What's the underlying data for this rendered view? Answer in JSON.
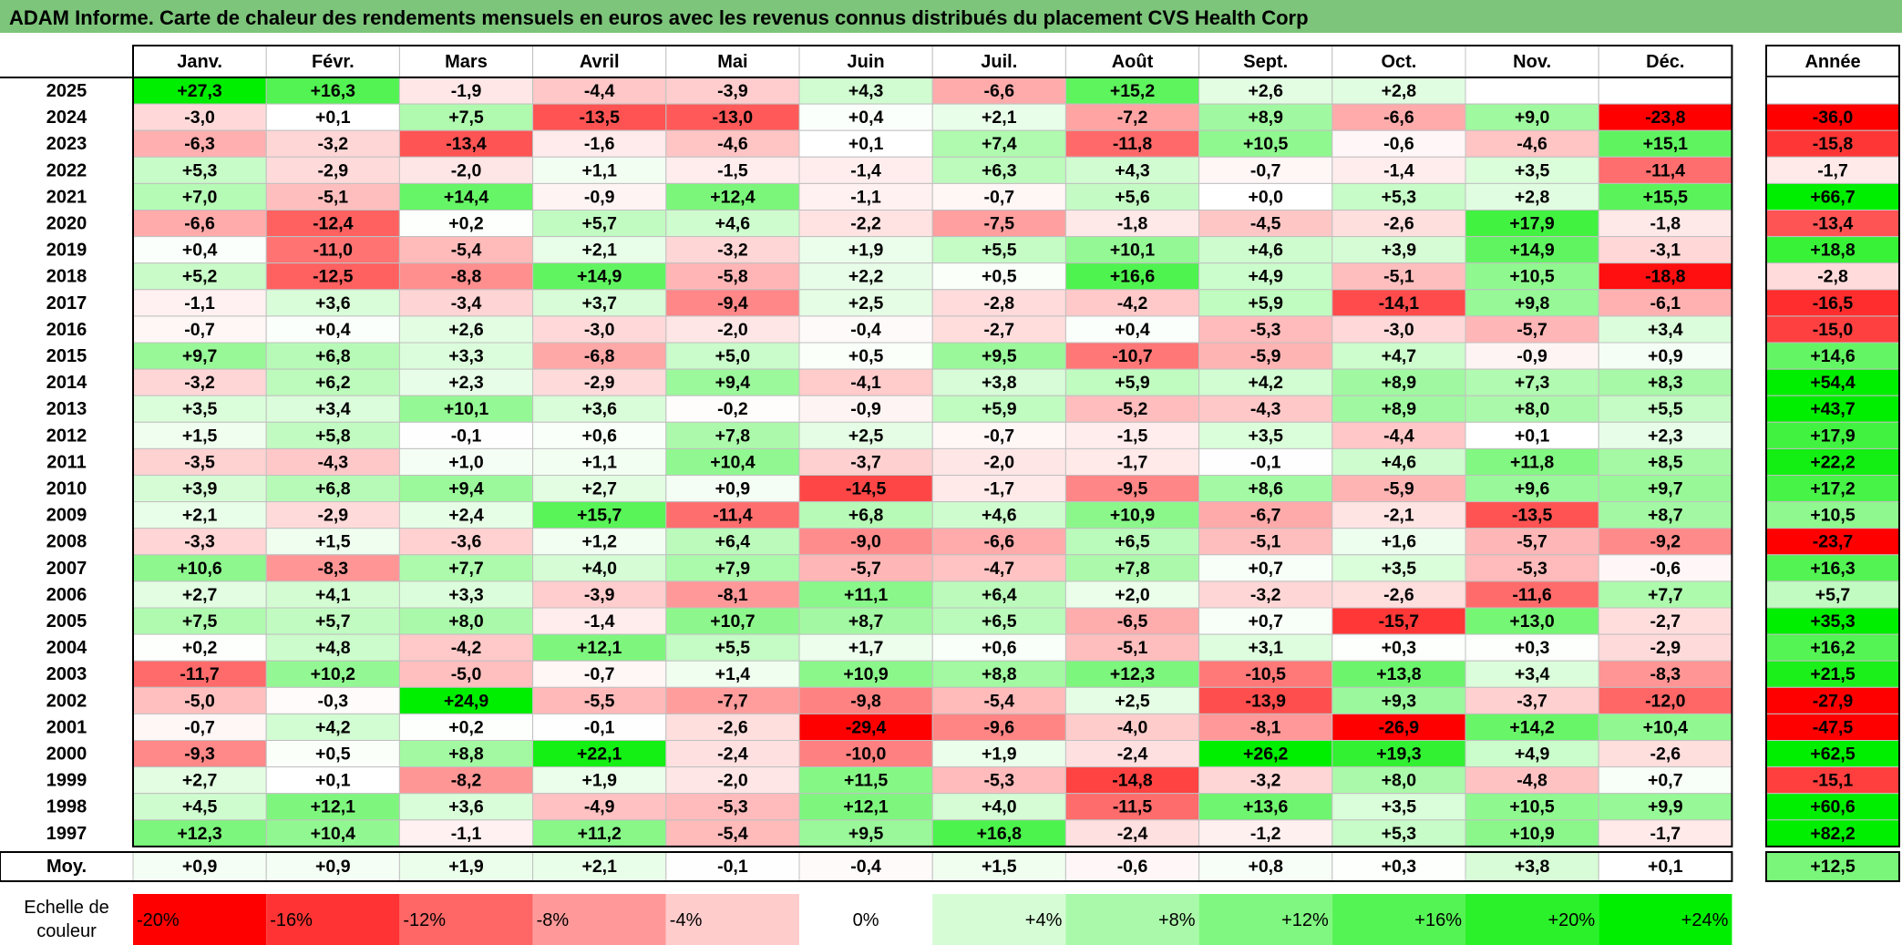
{
  "title": "ADAM Informe. Carte de chaleur des rendements mensuels en euros avec les revenus connus distribués du placement CVS Health Corp",
  "chart_data": {
    "type": "heatmap",
    "title": "ADAM Informe. Carte de chaleur des rendements mensuels en euros avec les revenus connus distribués du placement CVS Health Corp",
    "columns": [
      "Janv.",
      "Févr.",
      "Mars",
      "Avril",
      "Mai",
      "Juin",
      "Juil.",
      "Août",
      "Sept.",
      "Oct.",
      "Nov.",
      "Déc."
    ],
    "year_column_label": "Année",
    "rows": [
      {
        "year": "2025",
        "values": [
          "+27,3",
          "+16,3",
          "-1,9",
          "-4,4",
          "-3,9",
          "+4,3",
          "-6,6",
          "+15,2",
          "+2,6",
          "+2,8",
          "",
          ""
        ],
        "annual": ""
      },
      {
        "year": "2024",
        "values": [
          "-3,0",
          "+0,1",
          "+7,5",
          "-13,5",
          "-13,0",
          "+0,4",
          "+2,1",
          "-7,2",
          "+8,9",
          "-6,6",
          "+9,0",
          "-23,8"
        ],
        "annual": "-36,0"
      },
      {
        "year": "2023",
        "values": [
          "-6,3",
          "-3,2",
          "-13,4",
          "-1,6",
          "-4,6",
          "+0,1",
          "+7,4",
          "-11,8",
          "+10,5",
          "-0,6",
          "-4,6",
          "+15,1"
        ],
        "annual": "-15,8"
      },
      {
        "year": "2022",
        "values": [
          "+5,3",
          "-2,9",
          "-2,0",
          "+1,1",
          "-1,5",
          "-1,4",
          "+6,3",
          "+4,3",
          "-0,7",
          "-1,4",
          "+3,5",
          "-11,4"
        ],
        "annual": "-1,7"
      },
      {
        "year": "2021",
        "values": [
          "+7,0",
          "-5,1",
          "+14,4",
          "-0,9",
          "+12,4",
          "-1,1",
          "-0,7",
          "+5,6",
          "+0,0",
          "+5,3",
          "+2,8",
          "+15,5"
        ],
        "annual": "+66,7"
      },
      {
        "year": "2020",
        "values": [
          "-6,6",
          "-12,4",
          "+0,2",
          "+5,7",
          "+4,6",
          "-2,2",
          "-7,5",
          "-1,8",
          "-4,5",
          "-2,6",
          "+17,9",
          "-1,8"
        ],
        "annual": "-13,4"
      },
      {
        "year": "2019",
        "values": [
          "+0,4",
          "-11,0",
          "-5,4",
          "+2,1",
          "-3,2",
          "+1,9",
          "+5,5",
          "+10,1",
          "+4,6",
          "+3,9",
          "+14,9",
          "-3,1"
        ],
        "annual": "+18,8"
      },
      {
        "year": "2018",
        "values": [
          "+5,2",
          "-12,5",
          "-8,8",
          "+14,9",
          "-5,8",
          "+2,2",
          "+0,5",
          "+16,6",
          "+4,9",
          "-5,1",
          "+10,5",
          "-18,8"
        ],
        "annual": "-2,8"
      },
      {
        "year": "2017",
        "values": [
          "-1,1",
          "+3,6",
          "-3,4",
          "+3,7",
          "-9,4",
          "+2,5",
          "-2,8",
          "-4,2",
          "+5,9",
          "-14,1",
          "+9,8",
          "-6,1"
        ],
        "annual": "-16,5"
      },
      {
        "year": "2016",
        "values": [
          "-0,7",
          "+0,4",
          "+2,6",
          "-3,0",
          "-2,0",
          "-0,4",
          "-2,7",
          "+0,4",
          "-5,3",
          "-3,0",
          "-5,7",
          "+3,4"
        ],
        "annual": "-15,0"
      },
      {
        "year": "2015",
        "values": [
          "+9,7",
          "+6,8",
          "+3,3",
          "-6,8",
          "+5,0",
          "+0,5",
          "+9,5",
          "-10,7",
          "-5,9",
          "+4,7",
          "-0,9",
          "+0,9"
        ],
        "annual": "+14,6"
      },
      {
        "year": "2014",
        "values": [
          "-3,2",
          "+6,2",
          "+2,3",
          "-2,9",
          "+9,4",
          "-4,1",
          "+3,8",
          "+5,9",
          "+4,2",
          "+8,9",
          "+7,3",
          "+8,3"
        ],
        "annual": "+54,4"
      },
      {
        "year": "2013",
        "values": [
          "+3,5",
          "+3,4",
          "+10,1",
          "+3,6",
          "-0,2",
          "-0,9",
          "+5,9",
          "-5,2",
          "-4,3",
          "+8,9",
          "+8,0",
          "+5,5"
        ],
        "annual": "+43,7"
      },
      {
        "year": "2012",
        "values": [
          "+1,5",
          "+5,8",
          "-0,1",
          "+0,6",
          "+7,8",
          "+2,5",
          "-0,7",
          "-1,5",
          "+3,5",
          "-4,4",
          "+0,1",
          "+2,3"
        ],
        "annual": "+17,9"
      },
      {
        "year": "2011",
        "values": [
          "-3,5",
          "-4,3",
          "+1,0",
          "+1,1",
          "+10,4",
          "-3,7",
          "-2,0",
          "-1,7",
          "-0,1",
          "+4,6",
          "+11,8",
          "+8,5"
        ],
        "annual": "+22,2"
      },
      {
        "year": "2010",
        "values": [
          "+3,9",
          "+6,8",
          "+9,4",
          "+2,7",
          "+0,9",
          "-14,5",
          "-1,7",
          "-9,5",
          "+8,6",
          "-5,9",
          "+9,6",
          "+9,7"
        ],
        "annual": "+17,2"
      },
      {
        "year": "2009",
        "values": [
          "+2,1",
          "-2,9",
          "+2,4",
          "+15,7",
          "-11,4",
          "+6,8",
          "+4,6",
          "+10,9",
          "-6,7",
          "-2,1",
          "-13,5",
          "+8,7"
        ],
        "annual": "+10,5"
      },
      {
        "year": "2008",
        "values": [
          "-3,3",
          "+1,5",
          "-3,6",
          "+1,2",
          "+6,4",
          "-9,0",
          "-6,6",
          "+6,5",
          "-5,1",
          "+1,6",
          "-5,7",
          "-9,2"
        ],
        "annual": "-23,7"
      },
      {
        "year": "2007",
        "values": [
          "+10,6",
          "-8,3",
          "+7,7",
          "+4,0",
          "+7,9",
          "-5,7",
          "-4,7",
          "+7,8",
          "+0,7",
          "+3,5",
          "-5,3",
          "-0,6"
        ],
        "annual": "+16,3"
      },
      {
        "year": "2006",
        "values": [
          "+2,7",
          "+4,1",
          "+3,3",
          "-3,9",
          "-8,1",
          "+11,1",
          "+6,4",
          "+2,0",
          "-3,2",
          "-2,6",
          "-11,6",
          "+7,7"
        ],
        "annual": "+5,7"
      },
      {
        "year": "2005",
        "values": [
          "+7,5",
          "+5,7",
          "+8,0",
          "-1,4",
          "+10,7",
          "+8,7",
          "+6,5",
          "-6,5",
          "+0,7",
          "-15,7",
          "+13,0",
          "-2,7"
        ],
        "annual": "+35,3"
      },
      {
        "year": "2004",
        "values": [
          "+0,2",
          "+4,8",
          "-4,2",
          "+12,1",
          "+5,5",
          "+1,7",
          "+0,6",
          "-5,1",
          "+3,1",
          "+0,3",
          "+0,3",
          "-2,9"
        ],
        "annual": "+16,2"
      },
      {
        "year": "2003",
        "values": [
          "-11,7",
          "+10,2",
          "-5,0",
          "-0,7",
          "+1,4",
          "+10,9",
          "+8,8",
          "+12,3",
          "-10,5",
          "+13,8",
          "+3,4",
          "-8,3"
        ],
        "annual": "+21,5"
      },
      {
        "year": "2002",
        "values": [
          "-5,0",
          "-0,3",
          "+24,9",
          "-5,5",
          "-7,7",
          "-9,8",
          "-5,4",
          "+2,5",
          "-13,9",
          "+9,3",
          "-3,7",
          "-12,0"
        ],
        "annual": "-27,9"
      },
      {
        "year": "2001",
        "values": [
          "-0,7",
          "+4,2",
          "+0,2",
          "-0,1",
          "-2,6",
          "-29,4",
          "-9,6",
          "-4,0",
          "-8,1",
          "-26,9",
          "+14,2",
          "+10,4"
        ],
        "annual": "-47,5"
      },
      {
        "year": "2000",
        "values": [
          "-9,3",
          "+0,5",
          "+8,8",
          "+22,1",
          "-2,4",
          "-10,0",
          "+1,9",
          "-2,4",
          "+26,2",
          "+19,3",
          "+4,9",
          "-2,6"
        ],
        "annual": "+62,5"
      },
      {
        "year": "1999",
        "values": [
          "+2,7",
          "+0,1",
          "-8,2",
          "+1,9",
          "-2,0",
          "+11,5",
          "-5,3",
          "-14,8",
          "-3,2",
          "+8,0",
          "-4,8",
          "+0,7"
        ],
        "annual": "-15,1"
      },
      {
        "year": "1998",
        "values": [
          "+4,5",
          "+12,1",
          "+3,6",
          "-4,9",
          "-5,3",
          "+12,1",
          "+4,0",
          "-11,5",
          "+13,6",
          "+3,5",
          "+10,5",
          "+9,9"
        ],
        "annual": "+60,6"
      },
      {
        "year": "1997",
        "values": [
          "+12,3",
          "+10,4",
          "-1,1",
          "+11,2",
          "-5,4",
          "+9,5",
          "+16,8",
          "-2,4",
          "-1,2",
          "+5,3",
          "+10,9",
          "-1,7"
        ],
        "annual": "+82,2"
      }
    ],
    "average_row": {
      "label": "Moy.",
      "values": [
        "+0,9",
        "+0,9",
        "+1,9",
        "+2,1",
        "-0,1",
        "-0,4",
        "+1,5",
        "-0,6",
        "+0,8",
        "+0,3",
        "+3,8",
        "+0,1"
      ],
      "annual": "+12,5"
    },
    "color_scale": {
      "label_line1": "Echelle de",
      "label_line2": "couleur",
      "stops": [
        "-20%",
        "-16%",
        "-12%",
        "-8%",
        "-4%",
        "0%",
        "+4%",
        "+8%",
        "+12%",
        "+16%",
        "+20%",
        "+24%"
      ],
      "stop_values": [
        -20,
        -16,
        -12,
        -8,
        -4,
        0,
        4,
        8,
        12,
        16,
        20,
        24
      ]
    },
    "colors": {
      "title_bg": "#7cc57a",
      "neg_max": "#ff0000",
      "zero": "#ffffff",
      "pos_max": "#00ee00",
      "border": "#000000",
      "grid": "#c0c0c0"
    }
  }
}
